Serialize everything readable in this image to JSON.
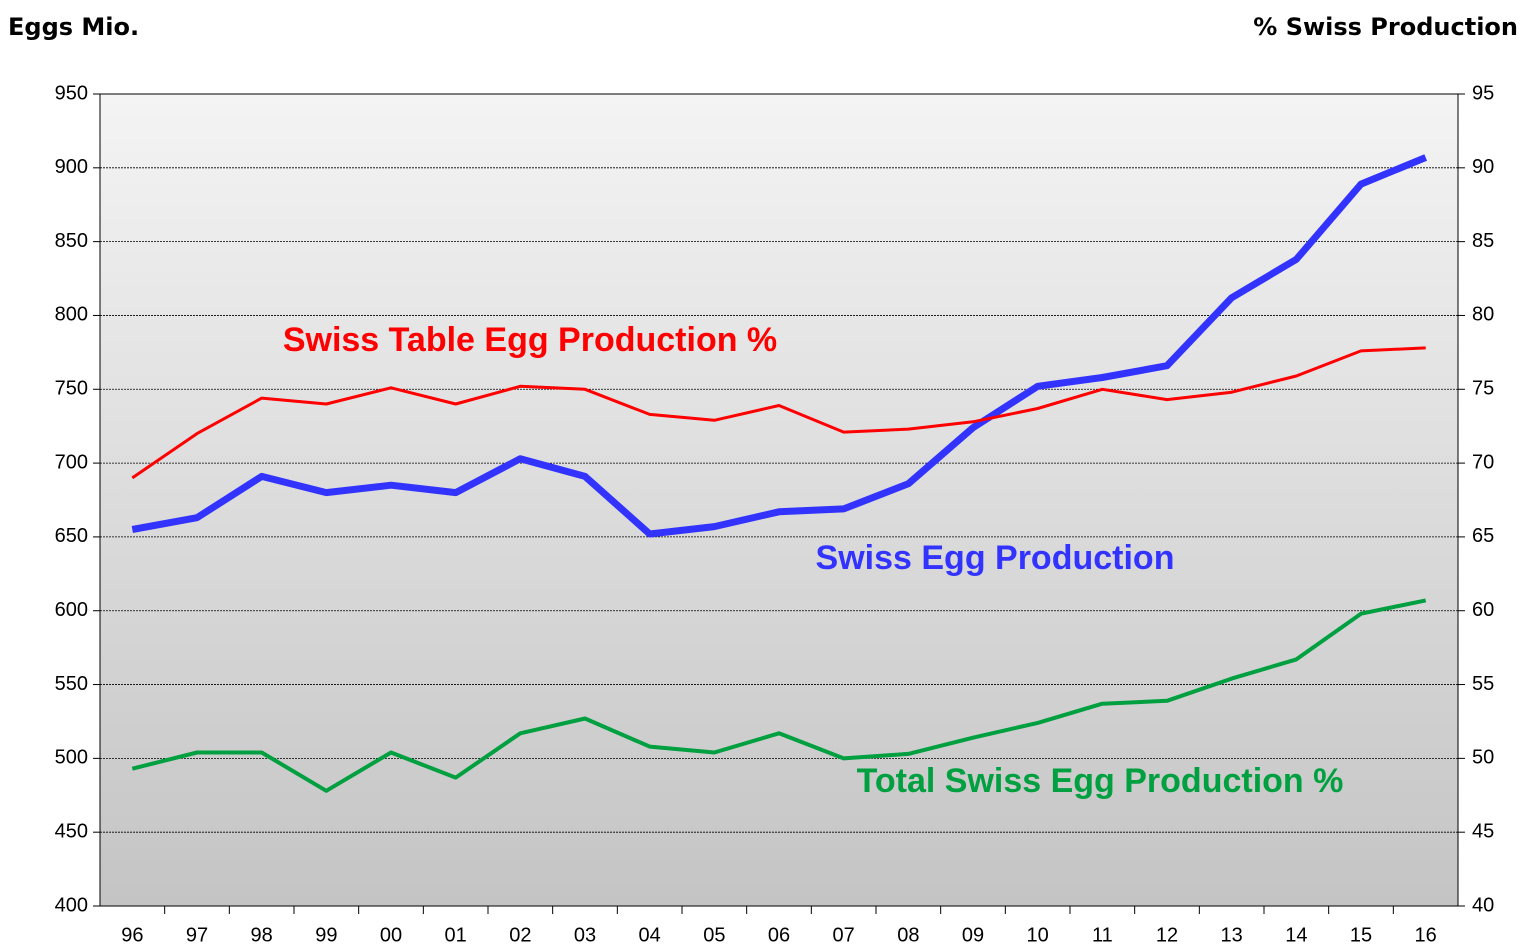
{
  "chart_data": {
    "type": "line",
    "ylabel": "Eggs Mio.",
    "y2label": "% Swiss Production",
    "categories": [
      "96",
      "97",
      "98",
      "99",
      "00",
      "01",
      "02",
      "03",
      "04",
      "05",
      "06",
      "07",
      "08",
      "09",
      "10",
      "11",
      "12",
      "13",
      "14",
      "15",
      "16"
    ],
    "series": [
      {
        "name": "Swiss Egg Production",
        "color": "#3333ff",
        "axis": "y",
        "values": [
          655,
          663,
          691,
          680,
          685,
          680,
          703,
          691,
          652,
          657,
          667,
          669,
          686,
          724,
          752,
          758,
          766,
          812,
          838,
          889,
          907
        ]
      },
      {
        "name": "Swiss Table Egg Production %",
        "color": "#ff0000",
        "axis": "y2",
        "values": [
          69.0,
          72.0,
          74.4,
          74.0,
          75.1,
          74.0,
          75.2,
          75.0,
          73.3,
          72.9,
          73.9,
          72.1,
          72.3,
          72.8,
          73.7,
          75.0,
          74.3,
          74.8,
          75.9,
          77.6,
          77.8
        ]
      },
      {
        "name": "Total Swiss Egg Production %",
        "color": "#00a040",
        "axis": "y2",
        "values": [
          49.3,
          50.4,
          50.4,
          47.8,
          50.4,
          48.7,
          51.7,
          52.7,
          50.8,
          50.4,
          51.7,
          50.0,
          50.3,
          51.4,
          52.4,
          53.7,
          53.9,
          55.4,
          56.7,
          59.8,
          60.7
        ]
      }
    ],
    "ylim": [
      400,
      950
    ],
    "yticks": [
      400,
      450,
      500,
      550,
      600,
      650,
      700,
      750,
      800,
      850,
      900,
      950
    ],
    "y2lim": [
      40,
      95
    ],
    "y2ticks": [
      40,
      45,
      50,
      55,
      60,
      65,
      70,
      75,
      80,
      85,
      90,
      95
    ],
    "grid": true
  }
}
